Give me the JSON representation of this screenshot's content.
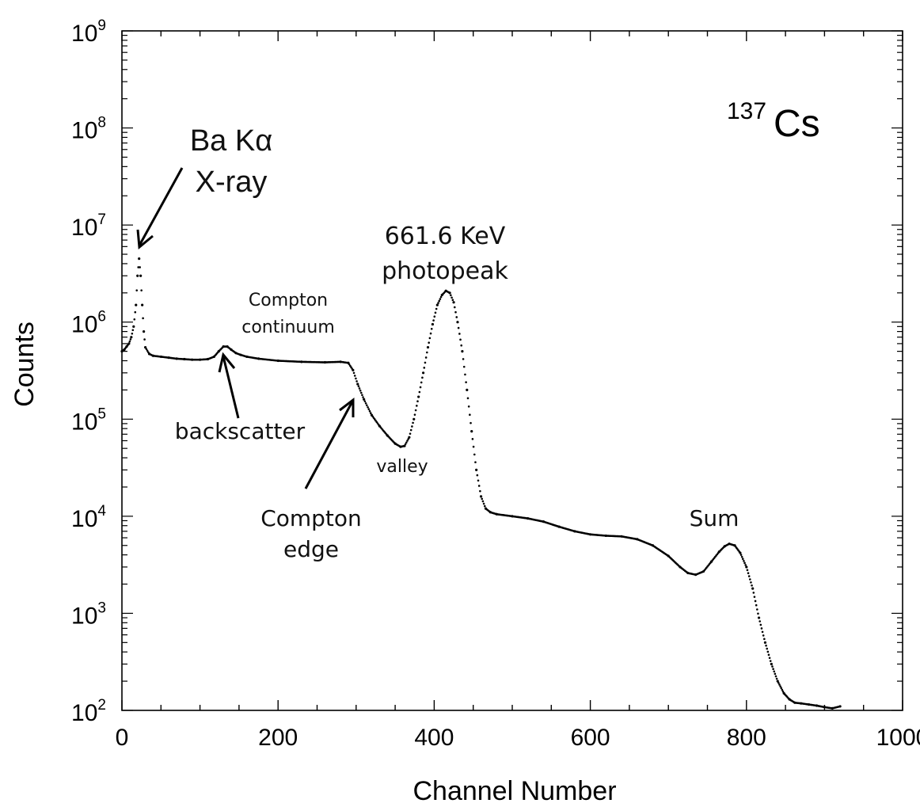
{
  "chart_data": {
    "type": "scatter",
    "xlabel": "Channel Number",
    "ylabel": "Counts",
    "xlim": [
      0,
      1000
    ],
    "ylim": [
      100,
      1000000000
    ],
    "y_scale": "log",
    "x_ticks": [
      "0",
      "200",
      "400",
      "600",
      "800",
      "1000"
    ],
    "y_ticks": [
      {
        "base": "10",
        "exp": "2"
      },
      {
        "base": "10",
        "exp": "3"
      },
      {
        "base": "10",
        "exp": "4"
      },
      {
        "base": "10",
        "exp": "5"
      },
      {
        "base": "10",
        "exp": "6"
      },
      {
        "base": "10",
        "exp": "7"
      },
      {
        "base": "10",
        "exp": "8"
      },
      {
        "base": "10",
        "exp": "9"
      }
    ],
    "grid": false,
    "isotope": {
      "mass": "137",
      "symbol": "Cs"
    },
    "annotations": [
      {
        "id": "ba-xray",
        "lines": [
          "Ba Kα",
          "X-ray"
        ]
      },
      {
        "id": "photopeak",
        "lines": [
          "661.6 KeV",
          "photopeak"
        ]
      },
      {
        "id": "compton-continuum",
        "lines": [
          "Compton",
          "continuum"
        ]
      },
      {
        "id": "backscatter",
        "lines": [
          "backscatter"
        ]
      },
      {
        "id": "valley",
        "lines": [
          "valley"
        ]
      },
      {
        "id": "compton-edge",
        "lines": [
          "Compton",
          "edge"
        ]
      },
      {
        "id": "sum",
        "lines": [
          "Sum"
        ]
      }
    ],
    "series": [
      {
        "x": [
          0,
          3,
          6,
          9,
          12,
          15,
          18,
          20,
          22,
          24,
          26,
          28,
          30,
          35,
          40,
          50,
          60,
          70,
          80,
          90,
          100,
          110,
          118,
          124,
          130,
          135,
          140,
          146,
          152,
          160,
          175,
          200,
          230,
          260,
          280,
          290,
          296,
          302,
          310,
          320,
          330,
          340,
          350,
          357,
          362,
          368,
          374,
          380,
          386,
          392,
          398,
          404,
          410,
          415,
          420,
          425,
          430,
          436,
          442,
          448,
          454,
          460,
          466,
          472,
          480,
          500,
          520,
          540,
          560,
          580,
          600,
          620,
          640,
          660,
          680,
          700,
          715,
          725,
          735,
          745,
          755,
          765,
          772,
          778,
          785,
          792,
          800,
          808,
          816,
          824,
          832,
          840,
          848,
          855,
          862,
          870,
          880,
          890,
          900,
          910,
          920
        ],
        "values": [
          500000,
          520000,
          560000,
          600000,
          700000,
          900000,
          1500000,
          3000000,
          4500000,
          3000000,
          1500000,
          800000,
          550000,
          470000,
          450000,
          440000,
          430000,
          420000,
          415000,
          410000,
          410000,
          415000,
          440000,
          500000,
          560000,
          560000,
          520000,
          480000,
          460000,
          440000,
          420000,
          400000,
          390000,
          385000,
          390000,
          380000,
          320000,
          230000,
          160000,
          110000,
          85000,
          68000,
          56000,
          52000,
          53000,
          65000,
          100000,
          170000,
          300000,
          550000,
          950000,
          1500000,
          1900000,
          2100000,
          2000000,
          1600000,
          1000000,
          500000,
          200000,
          75000,
          30000,
          16000,
          12000,
          11000,
          10500,
          10000,
          9500,
          8800,
          7800,
          7000,
          6500,
          6300,
          6200,
          5800,
          5000,
          3900,
          3000,
          2600,
          2500,
          2700,
          3400,
          4300,
          4900,
          5200,
          5000,
          4200,
          3000,
          1800,
          900,
          500,
          300,
          200,
          150,
          130,
          120,
          118,
          115,
          112,
          108,
          105,
          110
        ]
      }
    ]
  }
}
